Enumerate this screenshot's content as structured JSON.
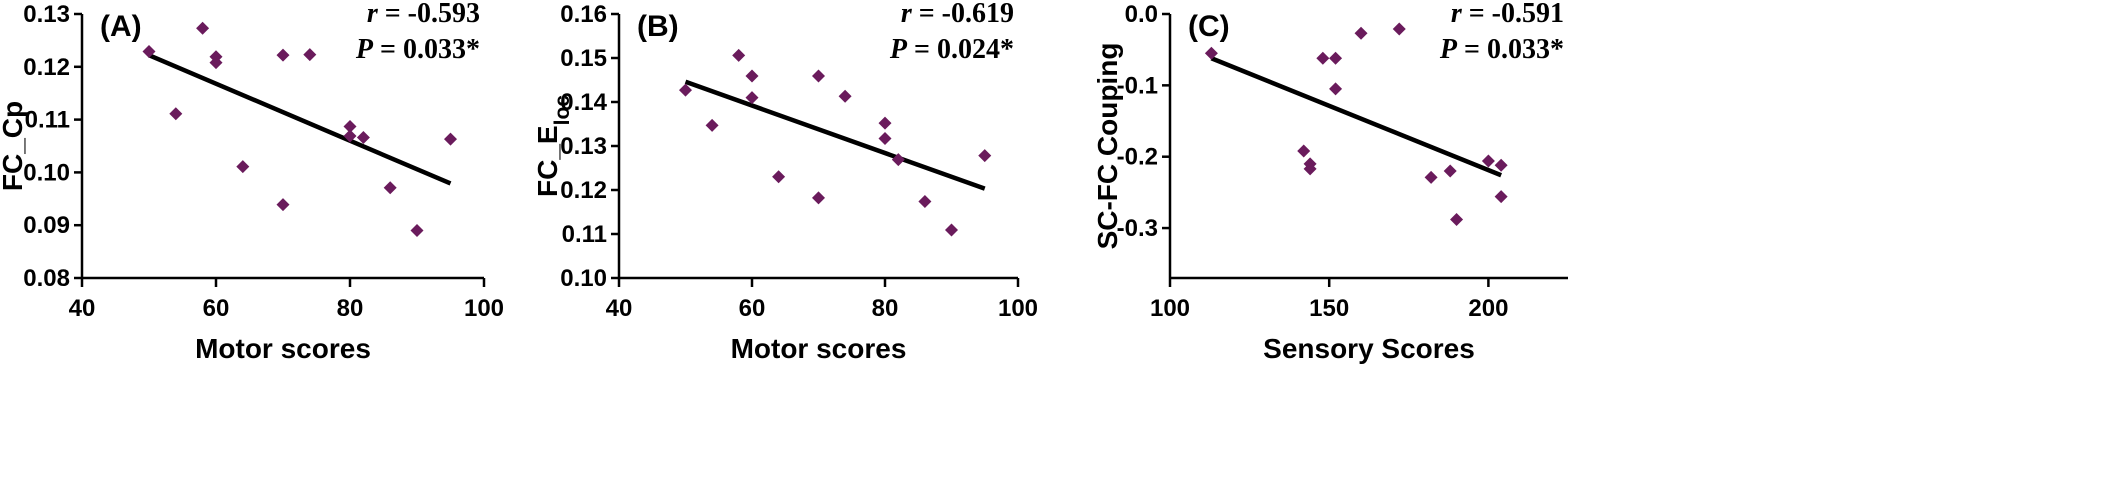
{
  "chart_data": [
    {
      "type": "scatter",
      "panel_label": "(A)",
      "xlabel": "Motor scores",
      "ylabel_main": "FC_Cp",
      "ylabel_sub": "",
      "xlim": [
        40,
        100
      ],
      "ylim": [
        0.08,
        0.13
      ],
      "xticks": [
        40,
        60,
        80,
        100
      ],
      "xtick_labels": [
        "40",
        "60",
        "80",
        "100"
      ],
      "yticks": [
        0.08,
        0.09,
        0.1,
        0.11,
        0.12,
        0.13
      ],
      "ytick_labels": [
        "0.08",
        "0.09",
        "0.10",
        "0.11",
        "0.12",
        "0.13"
      ],
      "r_label": "r",
      "r_value": " = -0.593",
      "p_label": "P",
      "p_value": " = 0.033*",
      "x": [
        50,
        54,
        58,
        60,
        60,
        64,
        70,
        70,
        74,
        80,
        80,
        82,
        86,
        90,
        95
      ],
      "y": [
        0.1229,
        0.1111,
        0.1273,
        0.1219,
        0.1208,
        0.1011,
        0.1222,
        0.0939,
        0.1223,
        0.1087,
        0.1069,
        0.1066,
        0.0971,
        0.089,
        0.1063
      ],
      "fit": {
        "x": [
          50,
          95
        ],
        "y": [
          0.1222,
          0.0979
        ]
      },
      "marker_color": "#6a1b5c",
      "line_color": "#000000"
    },
    {
      "type": "scatter",
      "panel_label": "(B)",
      "xlabel": "Motor scores",
      "ylabel_main": "FC_E",
      "ylabel_sub": "loc",
      "xlim": [
        40,
        100
      ],
      "ylim": [
        0.1,
        0.16
      ],
      "xticks": [
        40,
        60,
        80,
        100
      ],
      "xtick_labels": [
        "40",
        "60",
        "80",
        "100"
      ],
      "yticks": [
        0.1,
        0.11,
        0.12,
        0.13,
        0.14,
        0.15,
        0.16
      ],
      "ytick_labels": [
        "0.10",
        "0.11",
        "0.12",
        "0.13",
        "0.14",
        "0.15",
        "0.16"
      ],
      "r_label": "r",
      "r_value": " = -0.619",
      "p_label": "P",
      "p_value": " = 0.024*",
      "x": [
        50,
        54,
        58,
        60,
        60,
        64,
        70,
        70,
        74,
        80,
        80,
        82,
        86,
        90,
        95
      ],
      "y": [
        0.1427,
        0.1347,
        0.1506,
        0.1459,
        0.141,
        0.123,
        0.1459,
        0.1182,
        0.1413,
        0.1352,
        0.1317,
        0.1269,
        0.1174,
        0.1109,
        0.1278
      ],
      "fit": {
        "x": [
          50,
          95
        ],
        "y": [
          0.1446,
          0.1203
        ]
      },
      "marker_color": "#6a1b5c",
      "line_color": "#000000"
    },
    {
      "type": "scatter",
      "panel_label": "(C)",
      "xlabel": "Sensory Scores",
      "ylabel_main": "SC-FC Couping",
      "ylabel_sub": "",
      "xlim": [
        100,
        225
      ],
      "ylim": [
        -0.37,
        0.0
      ],
      "xticks": [
        100,
        150,
        200
      ],
      "xtick_labels": [
        "100",
        "150",
        "200"
      ],
      "yticks": [
        -0.3,
        -0.2,
        -0.1,
        0.0
      ],
      "ytick_labels": [
        "-0.3",
        "-0.2",
        "-0.1",
        "0.0"
      ],
      "r_label": "r",
      "r_value": " = -0.591",
      "p_label": "P",
      "p_value": " = 0.033*",
      "x": [
        113,
        142,
        144,
        144,
        148,
        152,
        152,
        160,
        172,
        182,
        188,
        190,
        200,
        204,
        204
      ],
      "y": [
        -0.055,
        -0.192,
        -0.21,
        -0.217,
        -0.062,
        -0.062,
        -0.105,
        -0.027,
        -0.021,
        -0.229,
        -0.22,
        -0.288,
        -0.206,
        -0.212,
        -0.256
      ],
      "fit": {
        "x": [
          113,
          204
        ],
        "y": [
          -0.062,
          -0.226
        ]
      },
      "marker_color": "#6a1b5c",
      "line_color": "#000000"
    }
  ]
}
